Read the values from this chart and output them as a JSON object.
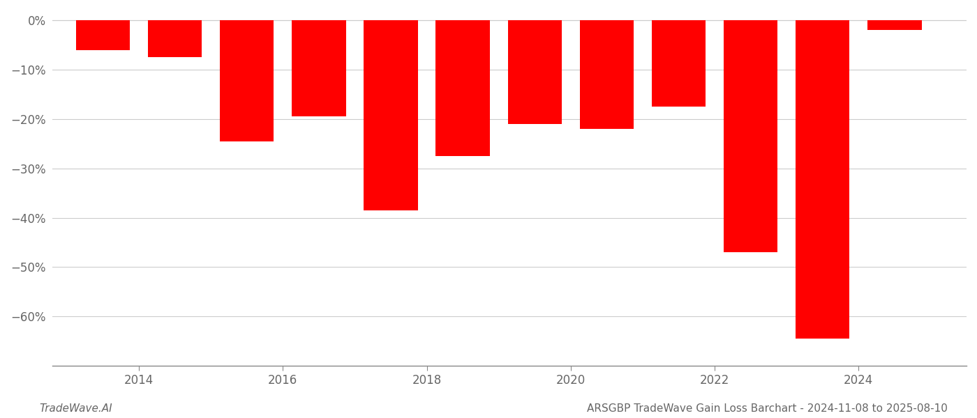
{
  "years": [
    2013.5,
    2014.5,
    2015.5,
    2016.5,
    2017.5,
    2018.5,
    2019.5,
    2020.5,
    2021.5,
    2022.5,
    2023.5,
    2024.5
  ],
  "values": [
    -6.0,
    -7.5,
    -24.5,
    -19.5,
    -38.5,
    -27.5,
    -21.0,
    -22.0,
    -17.5,
    -47.0,
    -64.5,
    -2.0
  ],
  "bar_color": "#ff0000",
  "bar_width": 0.75,
  "xlim": [
    2012.8,
    2025.5
  ],
  "ylim": [
    -70,
    2
  ],
  "yticks": [
    0,
    -10,
    -20,
    -30,
    -40,
    -50,
    -60
  ],
  "ytick_labels": [
    "0%",
    "−10%",
    "−20%",
    "−30%",
    "−40%",
    "−50%",
    "−60%"
  ],
  "xtick_positions": [
    2014,
    2016,
    2018,
    2020,
    2022,
    2024
  ],
  "xtick_labels": [
    "2014",
    "2016",
    "2018",
    "2020",
    "2022",
    "2024"
  ],
  "footer_left": "TradeWave.AI",
  "footer_right": "ARSGBP TradeWave Gain Loss Barchart - 2024-11-08 to 2025-08-10",
  "background_color": "#ffffff",
  "grid_color": "#cccccc",
  "text_color": "#666666",
  "spine_color": "#888888"
}
